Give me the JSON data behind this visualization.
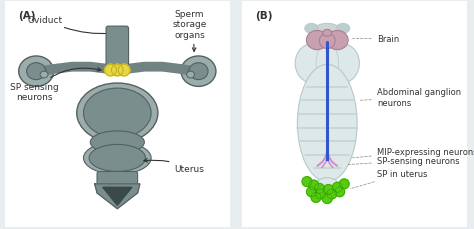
{
  "bg_color": "#e8eef0",
  "panel_bg": "#ffffff",
  "organ_gray": "#7a8e8e",
  "organ_gray_dark": "#556060",
  "organ_gray_light": "#9aacac",
  "sp_yellow": "#e8d840",
  "sp_yellow2": "#c4b020",
  "body_light": "#dde8e8",
  "body_edge": "#b8c8c8",
  "stripe_color": "#c8d4d4",
  "brain_color": "#c8a0b0",
  "brain_dark": "#a88090",
  "blue_line": "#3355cc",
  "pink_neuron": "#d090cc",
  "green_sp": "#55cc11",
  "text_color": "#333333",
  "dashed_color": "#999999",
  "panel_A_label": "(A)",
  "panel_B_label": "(B)",
  "oviduct_label": "Oviduct",
  "sperm_label": "Sperm\nstorage\norgans",
  "sp_sensing_label": "SP sensing\nneurons",
  "uterus_label": "Uterus",
  "brain_label": "Brain",
  "abd_ganglion_label": "Abdominal ganglion\nneurons",
  "mip_label": "MIP-expressing neurons",
  "sp_sensing2_label": "SP-sensing neurons",
  "sp_uterus_label": "SP in uterus"
}
